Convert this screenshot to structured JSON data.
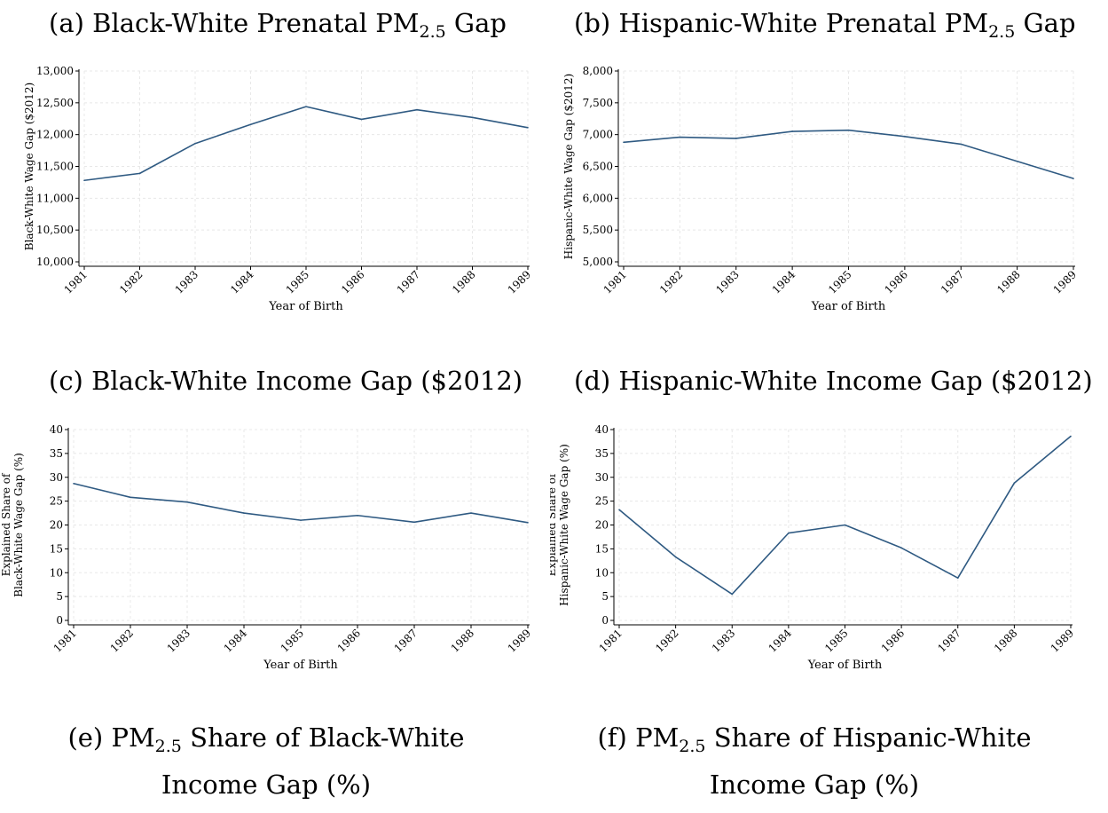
{
  "captions": {
    "a": {
      "pre": "(a) Black-White Prenatal PM",
      "sub": "2.5",
      "post": " Gap"
    },
    "b": {
      "pre": "(b) Hispanic-White Prenatal PM",
      "sub": "2.5",
      "post": " Gap"
    },
    "c": {
      "text": "(c) Black-White Income Gap ($2012)"
    },
    "d": {
      "text": "(d) Hispanic-White Income Gap ($2012)"
    },
    "e": {
      "pre": "(e) PM",
      "sub": "2.5",
      "post": " Share of Black-White",
      "line2": "Income Gap (%)"
    },
    "f": {
      "pre": "(f) PM",
      "sub": "2.5",
      "post": " Share of Hispanic-White",
      "line2": "Income Gap (%)"
    }
  },
  "colors": {
    "line": "#2f5a82",
    "grid": "#e8e8e8",
    "axis": "#000000"
  },
  "chart_data": [
    {
      "type": "line",
      "xlabel": "Year of Birth",
      "ylabel": [
        "Black-White Wage Gap ($2012)"
      ],
      "x": [
        1981,
        1982,
        1983,
        1984,
        1985,
        1986,
        1987,
        1988,
        1989
      ],
      "xtick_labels": [
        "1981",
        "1982",
        "1983",
        "1984",
        "1985",
        "1986",
        "1987",
        "1988",
        "1989"
      ],
      "ylim": [
        10000,
        13000
      ],
      "yticks": [
        10000,
        10500,
        11000,
        11500,
        12000,
        12500,
        13000
      ],
      "ytick_labels": [
        "10,000",
        "10,500",
        "11,000",
        "11,500",
        "12,000",
        "12,500",
        "13,000"
      ],
      "series": [
        {
          "values": [
            11280,
            11390,
            11860,
            12160,
            12440,
            12240,
            12390,
            12270,
            12110
          ]
        }
      ],
      "grid": true
    },
    {
      "type": "line",
      "xlabel": "Year of Birth",
      "ylabel": [
        "Hispanic-White Wage Gap ($2012)"
      ],
      "x": [
        1981,
        1982,
        1983,
        1984,
        1985,
        1986,
        1987,
        1988,
        1989
      ],
      "xtick_labels": [
        "1981",
        "1982",
        "1983",
        "1984",
        "1985",
        "1986",
        "1987",
        "1988",
        "1989"
      ],
      "ylim": [
        5000,
        8000
      ],
      "yticks": [
        5000,
        5500,
        6000,
        6500,
        7000,
        7500,
        8000
      ],
      "ytick_labels": [
        "5,000",
        "5,500",
        "6,000",
        "6,500",
        "7,000",
        "7,500",
        "8,000"
      ],
      "series": [
        {
          "values": [
            6880,
            6960,
            6940,
            7050,
            7070,
            6970,
            6850,
            6580,
            6310
          ]
        }
      ],
      "grid": true
    },
    {
      "type": "line",
      "xlabel": "Year of Birth",
      "ylabel": [
        "Explained Share of",
        "Black-White Wage Gap (%)"
      ],
      "x": [
        1981,
        1982,
        1983,
        1984,
        1985,
        1986,
        1987,
        1988,
        1989
      ],
      "xtick_labels": [
        "1981",
        "1982",
        "1983",
        "1984",
        "1985",
        "1986",
        "1987",
        "1988",
        "1989"
      ],
      "ylim": [
        0,
        40
      ],
      "yticks": [
        0,
        5,
        10,
        15,
        20,
        25,
        30,
        35,
        40
      ],
      "ytick_labels": [
        "0",
        "5",
        "10",
        "15",
        "20",
        "25",
        "30",
        "35",
        "40"
      ],
      "series": [
        {
          "values": [
            28.7,
            25.8,
            24.8,
            22.5,
            21.0,
            22.0,
            20.6,
            22.5,
            20.5
          ]
        }
      ],
      "grid": true
    },
    {
      "type": "line",
      "xlabel": "Year of Birth",
      "ylabel": [
        "Explained Share of",
        "Hispanic-White Wage Gap (%)"
      ],
      "x": [
        1981,
        1982,
        1983,
        1984,
        1985,
        1986,
        1987,
        1988,
        1989
      ],
      "xtick_labels": [
        "1981",
        "1982",
        "1983",
        "1984",
        "1985",
        "1986",
        "1987",
        "1988",
        "1989"
      ],
      "ylim": [
        0,
        40
      ],
      "yticks": [
        0,
        5,
        10,
        15,
        20,
        25,
        30,
        35,
        40
      ],
      "ytick_labels": [
        "0",
        "5",
        "10",
        "15",
        "20",
        "25",
        "30",
        "35",
        "40"
      ],
      "series": [
        {
          "values": [
            23.2,
            13.3,
            5.5,
            18.3,
            20.0,
            15.2,
            8.9,
            28.8,
            38.6
          ]
        }
      ],
      "grid": true
    }
  ]
}
